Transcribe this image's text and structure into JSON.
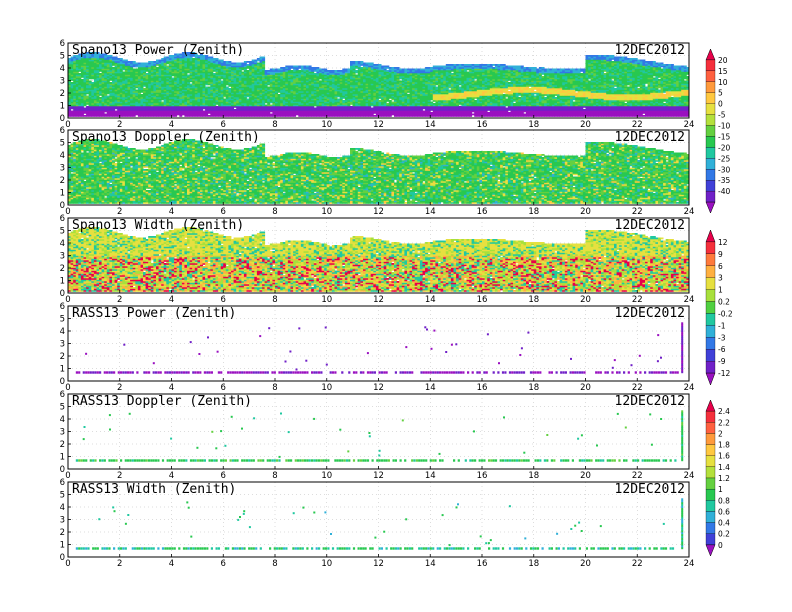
{
  "chart_data": [
    {
      "type": "heatmap",
      "title": "Spano13 Power (Zenith)",
      "date": "12DEC2012",
      "kind": "dense",
      "profile": "power",
      "xlim": [
        0,
        24
      ],
      "ylim": [
        0,
        6
      ],
      "xticks": [
        0,
        2,
        4,
        6,
        8,
        10,
        12,
        14,
        16,
        18,
        20,
        22,
        24
      ],
      "yticks": [
        0,
        1,
        2,
        3,
        4,
        5,
        6
      ],
      "grid": true,
      "colorbar": "cb1"
    },
    {
      "type": "heatmap",
      "title": "Spano13 Doppler (Zenith)",
      "date": "12DEC2012",
      "kind": "dense",
      "profile": "doppler",
      "xlim": [
        0,
        24
      ],
      "ylim": [
        0,
        6
      ],
      "xticks": [
        0,
        2,
        4,
        6,
        8,
        10,
        12,
        14,
        16,
        18,
        20,
        22,
        24
      ],
      "yticks": [
        0,
        1,
        2,
        3,
        4,
        5,
        6
      ],
      "grid": true,
      "colorbar": "cb1"
    },
    {
      "type": "heatmap",
      "title": "Spano13 Width (Zenith)",
      "date": "12DEC2012",
      "kind": "dense",
      "profile": "width",
      "xlim": [
        0,
        24
      ],
      "ylim": [
        0,
        6
      ],
      "xticks": [
        0,
        2,
        4,
        6,
        8,
        10,
        12,
        14,
        16,
        18,
        20,
        22,
        24
      ],
      "yticks": [
        0,
        1,
        2,
        3,
        4,
        5,
        6
      ],
      "grid": true,
      "colorbar": "cb2"
    },
    {
      "type": "heatmap",
      "title": "RASS13 Power (Zenith)",
      "date": "12DEC2012",
      "kind": "sparse",
      "profile": "rasspower",
      "xlim": [
        0,
        24
      ],
      "ylim": [
        0,
        6
      ],
      "xticks": [
        0,
        2,
        4,
        6,
        8,
        10,
        12,
        14,
        16,
        18,
        20,
        22,
        24
      ],
      "yticks": [
        0,
        1,
        2,
        3,
        4,
        5,
        6
      ],
      "grid": true,
      "colorbar": "cb2"
    },
    {
      "type": "heatmap",
      "title": "RASS13 Doppler (Zenith)",
      "date": "12DEC2012",
      "kind": "sparse",
      "profile": "rassdoppler",
      "xlim": [
        0,
        24
      ],
      "ylim": [
        0,
        6
      ],
      "xticks": [
        0,
        2,
        4,
        6,
        8,
        10,
        12,
        14,
        16,
        18,
        20,
        22,
        24
      ],
      "yticks": [
        0,
        1,
        2,
        3,
        4,
        5,
        6
      ],
      "grid": true,
      "colorbar": "cb3"
    },
    {
      "type": "heatmap",
      "title": "RASS13 Width (Zenith)",
      "date": "12DEC2012",
      "kind": "sparse",
      "profile": "rasswidth",
      "xlim": [
        0,
        24
      ],
      "ylim": [
        0,
        6
      ],
      "xticks": [
        0,
        2,
        4,
        6,
        8,
        10,
        12,
        14,
        16,
        18,
        20,
        22,
        24
      ],
      "yticks": [
        0,
        1,
        2,
        3,
        4,
        5,
        6
      ],
      "grid": true,
      "colorbar": "cb3"
    }
  ],
  "colorbars": {
    "cb1": {
      "labels": [
        "20",
        "15",
        "10",
        "5",
        "0",
        "-5",
        "-10",
        "-15",
        "-20",
        "-25",
        "-30",
        "-35",
        "-40"
      ],
      "colors": [
        "#e8004a",
        "#f5303c",
        "#ff6040",
        "#ff9a3c",
        "#ffc840",
        "#e6e040",
        "#b4e03c",
        "#64d040",
        "#28c850",
        "#20c8a0",
        "#30b0d8",
        "#3278e6",
        "#4040d8",
        "#7020c8",
        "#9a10c0"
      ]
    },
    "cb2": {
      "labels": [
        "12",
        "9",
        "6",
        "3",
        "1",
        "0.2",
        "-0.2",
        "-1",
        "-3",
        "-6",
        "-9",
        "-12"
      ],
      "colors": [
        "#e8004a",
        "#f5303c",
        "#ff7a3c",
        "#ffb040",
        "#e6e040",
        "#a8e03c",
        "#50d040",
        "#20c8a0",
        "#30b0d8",
        "#3278e6",
        "#4040d8",
        "#7020c8",
        "#9a10c0"
      ]
    },
    "cb3": {
      "labels": [
        "2.4",
        "2.2",
        "2",
        "1.8",
        "1.6",
        "1.4",
        "1.2",
        "1",
        "0.8",
        "0.6",
        "0.4",
        "0.2",
        "0"
      ],
      "colors": [
        "#e8004a",
        "#f5303c",
        "#ff6040",
        "#ff9a3c",
        "#ffc840",
        "#e6e040",
        "#b4e03c",
        "#64d040",
        "#28c850",
        "#20c8a0",
        "#30b0d8",
        "#3278e6",
        "#4040d8",
        "#9a10c0"
      ]
    }
  }
}
